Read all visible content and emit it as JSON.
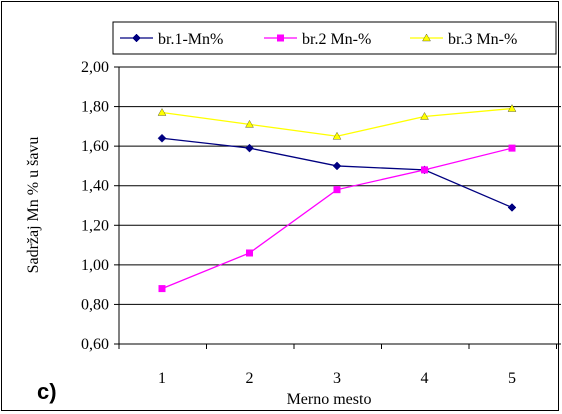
{
  "panel_label": "c)",
  "colors": {
    "series1": "#000080",
    "series2": "#FF00FF",
    "series3": "#FFFF00",
    "grid": "#000000"
  },
  "chart_data": {
    "type": "line",
    "x": [
      1,
      2,
      3,
      4,
      5
    ],
    "xlabel": "Merno mesto",
    "ylabel": "Sadržaj Mn % u šavu",
    "ylim": [
      0.6,
      2.0
    ],
    "yticks": [
      "0,60",
      "0,80",
      "1,00",
      "1,20",
      "1,40",
      "1,60",
      "1,80",
      "2,00"
    ],
    "grid": "horizontal",
    "legend_position": "top",
    "series": [
      {
        "name": "br.1-Mn%",
        "marker": "diamond",
        "values": [
          1.64,
          1.59,
          1.5,
          1.48,
          1.29
        ]
      },
      {
        "name": "br.2 Mn-%",
        "marker": "square",
        "values": [
          0.88,
          1.06,
          1.38,
          1.48,
          1.59
        ]
      },
      {
        "name": "br.3 Mn-%",
        "marker": "triangle",
        "values": [
          1.77,
          1.71,
          1.65,
          1.75,
          1.79
        ]
      }
    ]
  }
}
